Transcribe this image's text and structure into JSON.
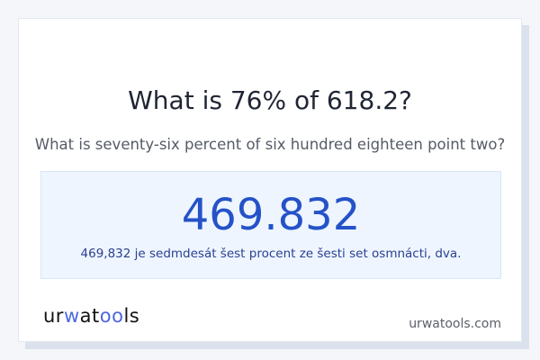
{
  "title": "What is 76% of 618.2?",
  "subtitle": "What is seventy-six percent of six hundred eighteen point two?",
  "result": {
    "value": "469.832",
    "words": "469,832 je sedmdesát šest procent ze šesti set osmnácti, dva."
  },
  "logo": {
    "part1": "ur",
    "part2": "w",
    "part3": "at",
    "part4": "oo",
    "part5": "ls"
  },
  "site": "urwatools.com",
  "colors": {
    "accent": "#2452c8",
    "background": "#f4f6fa",
    "result_bg": "#eef5ff"
  }
}
